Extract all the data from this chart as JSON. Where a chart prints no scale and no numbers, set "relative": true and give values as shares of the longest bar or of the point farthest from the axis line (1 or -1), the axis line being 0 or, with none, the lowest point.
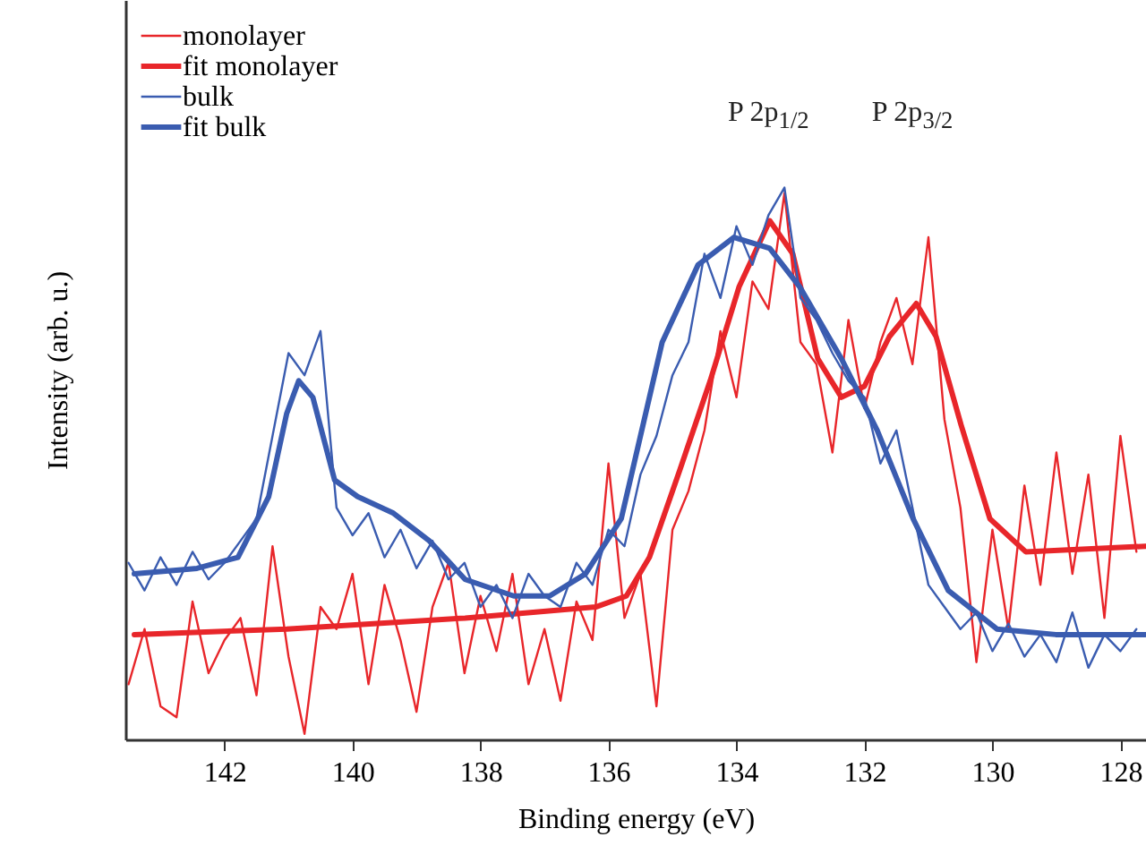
{
  "chart_data": {
    "type": "line",
    "relative": true,
    "xlabel": "Binding energy (eV)",
    "ylabel": "Intensity (arb. u.)",
    "xlim": [
      143.55,
      127.6
    ],
    "xticks": [
      142,
      140,
      138,
      136,
      134,
      132,
      130,
      128
    ],
    "tick_labels": "x",
    "legend": "top left",
    "grid": false,
    "marker": "none",
    "line_style": "solid",
    "annotations": [
      "P 2p$_{1/2}$",
      "P 2p$_{3/2}$"
    ],
    "series": [
      {
        "name": "monolayer",
        "color": "#e8262a",
        "x": [
          143.5,
          143.25,
          143.0,
          142.75,
          142.5,
          142.25,
          142.0,
          141.75,
          141.5,
          141.25,
          141.0,
          140.75,
          140.5,
          140.25,
          140.0,
          139.75,
          139.5,
          139.25,
          139.0,
          138.75,
          138.5,
          138.25,
          138.0,
          137.75,
          137.5,
          137.25,
          137.0,
          136.75,
          136.5,
          136.25,
          136.0,
          135.75,
          135.5,
          135.25,
          135.0,
          134.75,
          134.5,
          134.25,
          134.0,
          133.75,
          133.5,
          133.25,
          133.0,
          132.75,
          132.5,
          132.25,
          132.0,
          131.75,
          131.5,
          131.25,
          131.0,
          130.75,
          130.5,
          130.25,
          130.0,
          129.75,
          129.5,
          129.25,
          129.0,
          128.75,
          128.5,
          128.25,
          128.0,
          127.75
        ],
        "values": [
          0.1,
          0.2,
          0.06,
          0.04,
          0.25,
          0.12,
          0.18,
          0.22,
          0.08,
          0.35,
          0.15,
          0.01,
          0.24,
          0.2,
          0.3,
          0.1,
          0.28,
          0.18,
          0.05,
          0.24,
          0.32,
          0.12,
          0.26,
          0.16,
          0.3,
          0.1,
          0.2,
          0.07,
          0.25,
          0.18,
          0.5,
          0.22,
          0.3,
          0.06,
          0.38,
          0.45,
          0.56,
          0.74,
          0.62,
          0.83,
          0.78,
          0.99,
          0.72,
          0.68,
          0.52,
          0.76,
          0.6,
          0.72,
          0.8,
          0.68,
          0.91,
          0.58,
          0.42,
          0.14,
          0.38,
          0.2,
          0.46,
          0.28,
          0.52,
          0.3,
          0.48,
          0.22,
          0.55,
          0.34
        ]
      },
      {
        "name": "fit monolayer",
        "color": "#e8262a",
        "x": [
          143.41,
          141.03,
          138.24,
          136.2,
          135.72,
          135.36,
          134.88,
          134.41,
          133.96,
          133.48,
          133.12,
          132.73,
          132.36,
          132.0,
          131.61,
          131.19,
          130.88,
          130.49,
          130.04,
          129.48,
          127.61
        ],
        "values": [
          0.19,
          0.2,
          0.22,
          0.24,
          0.26,
          0.33,
          0.49,
          0.65,
          0.82,
          0.94,
          0.88,
          0.69,
          0.62,
          0.64,
          0.73,
          0.79,
          0.73,
          0.57,
          0.4,
          0.34,
          0.35
        ]
      },
      {
        "name": "bulk",
        "color": "#3a5cb0",
        "x": [
          143.5,
          143.25,
          143.0,
          142.75,
          142.5,
          142.25,
          142.0,
          141.75,
          141.5,
          141.25,
          141.0,
          140.75,
          140.5,
          140.25,
          140.0,
          139.75,
          139.5,
          139.25,
          139.0,
          138.75,
          138.5,
          138.25,
          138.0,
          137.75,
          137.5,
          137.25,
          137.0,
          136.75,
          136.5,
          136.25,
          136.0,
          135.75,
          135.5,
          135.25,
          135.0,
          134.75,
          134.5,
          134.25,
          134.0,
          133.75,
          133.5,
          133.25,
          133.0,
          132.75,
          132.5,
          132.25,
          132.0,
          131.75,
          131.5,
          131.25,
          131.0,
          130.75,
          130.5,
          130.25,
          130.0,
          129.75,
          129.5,
          129.25,
          129.0,
          128.75,
          128.5,
          128.25,
          128.0,
          127.75
        ],
        "values": [
          0.32,
          0.27,
          0.33,
          0.28,
          0.34,
          0.29,
          0.32,
          0.36,
          0.4,
          0.55,
          0.7,
          0.66,
          0.74,
          0.42,
          0.37,
          0.41,
          0.33,
          0.38,
          0.31,
          0.36,
          0.29,
          0.32,
          0.24,
          0.28,
          0.22,
          0.3,
          0.26,
          0.24,
          0.32,
          0.28,
          0.38,
          0.35,
          0.48,
          0.55,
          0.66,
          0.72,
          0.88,
          0.8,
          0.93,
          0.86,
          0.95,
          1.0,
          0.8,
          0.76,
          0.7,
          0.65,
          0.62,
          0.5,
          0.56,
          0.42,
          0.28,
          0.24,
          0.2,
          0.23,
          0.16,
          0.21,
          0.15,
          0.19,
          0.14,
          0.23,
          0.13,
          0.19,
          0.16,
          0.2
        ]
      },
      {
        "name": "fit bulk",
        "color": "#3a5cb0",
        "x": [
          143.41,
          142.43,
          141.79,
          141.31,
          141.03,
          140.84,
          140.62,
          140.28,
          139.92,
          139.36,
          138.8,
          138.24,
          137.48,
          136.92,
          136.36,
          135.8,
          135.16,
          134.6,
          134.04,
          133.48,
          133.01,
          132.36,
          131.8,
          131.24,
          130.69,
          129.93,
          129.01,
          127.61
        ],
        "values": [
          0.3,
          0.31,
          0.33,
          0.44,
          0.59,
          0.65,
          0.62,
          0.47,
          0.44,
          0.41,
          0.36,
          0.29,
          0.26,
          0.26,
          0.3,
          0.4,
          0.72,
          0.86,
          0.91,
          0.89,
          0.82,
          0.69,
          0.56,
          0.4,
          0.27,
          0.2,
          0.19,
          0.19
        ]
      }
    ]
  }
}
